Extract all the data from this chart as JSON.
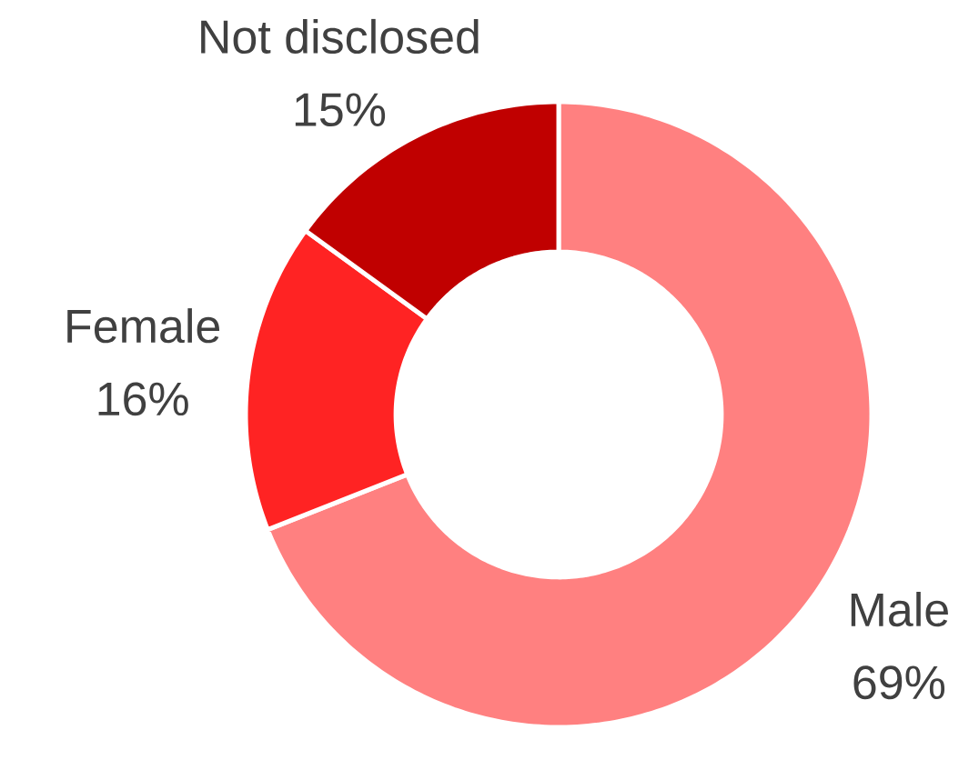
{
  "chart_data": {
    "type": "donut",
    "categories": [
      "Male",
      "Female",
      "Not disclosed"
    ],
    "values": [
      69,
      16,
      15
    ],
    "colors": [
      "#ff8080",
      "#ff2323",
      "#c00000"
    ],
    "value_labels": [
      "69%",
      "16%",
      "15%"
    ]
  }
}
